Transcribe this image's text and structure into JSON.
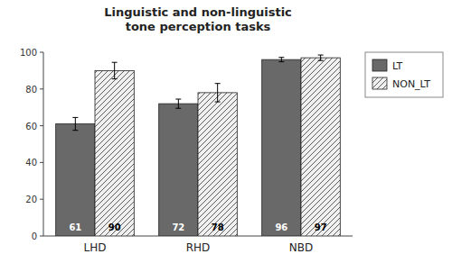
{
  "chart_data": {
    "type": "bar",
    "title": "Linguistic and non-linguistic\ntone perception tasks",
    "categories": [
      "LHD",
      "RHD",
      "NBD"
    ],
    "series": [
      {
        "name": "LT",
        "color": "#696969",
        "values": [
          61,
          72,
          96
        ],
        "errors": [
          3.5,
          2.5,
          1.2
        ]
      },
      {
        "name": "NON_LT",
        "color": "#f0f0f0",
        "values": [
          90,
          78,
          97
        ],
        "errors": [
          4.5,
          5.0,
          1.5
        ]
      }
    ],
    "ylim": [
      0,
      100
    ],
    "yticks": [
      0,
      20,
      40,
      60,
      80,
      100
    ],
    "grid": false,
    "legend": "right",
    "data_labels": true
  }
}
